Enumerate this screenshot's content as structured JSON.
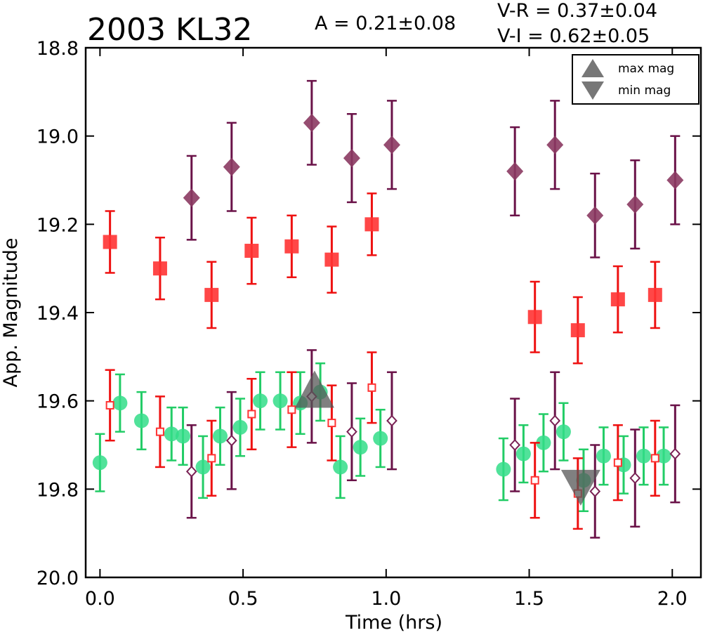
{
  "chart_data": {
    "type": "scatter",
    "title": "2003 KL32",
    "amplitude_label": "A  = 0.21±0.08",
    "color_labels": [
      "V-R = 0.37±0.04",
      "V-I  = 0.62±0.05"
    ],
    "xlabel": "Time (hrs)",
    "ylabel": "App. Magnitude",
    "xlim": [
      -0.05,
      2.1
    ],
    "ylim": [
      20.0,
      18.8
    ],
    "y_inverted": true,
    "xticks": [
      "0.0",
      "0.5",
      "1.0",
      "1.5",
      "2.0"
    ],
    "xtick_values": [
      0.0,
      0.5,
      1.0,
      1.5,
      2.0
    ],
    "yticks": [
      "18.8",
      "19.0",
      "19.2",
      "19.4",
      "19.6",
      "19.8",
      "20.0"
    ],
    "ytick_values": [
      18.8,
      19.0,
      19.2,
      19.4,
      19.6,
      19.8,
      20.0
    ],
    "grid": false,
    "legend": {
      "placement": "top-right",
      "entries": [
        {
          "label": "max mag",
          "marker": "triangle-up"
        },
        {
          "label": "min mag",
          "marker": "triangle-down"
        }
      ]
    },
    "series": [
      {
        "marker": "diamond",
        "color": "#8b3a62",
        "edge": "#6a1248",
        "errcolor": "#6a1248",
        "x": [
          0.32,
          0.46,
          0.74,
          0.88,
          1.02,
          1.45,
          1.59,
          1.73,
          1.87,
          2.01
        ],
        "y": [
          19.14,
          19.07,
          18.97,
          19.05,
          19.02,
          19.08,
          19.02,
          19.18,
          19.155,
          19.1
        ],
        "err": [
          0.095,
          0.1,
          0.095,
          0.1,
          0.1,
          0.1,
          0.1,
          0.095,
          0.1,
          0.1
        ]
      },
      {
        "marker": "square",
        "color": "#ff3333",
        "edge": "#ff3333",
        "errcolor": "#ee1111",
        "x": [
          0.035,
          0.21,
          0.39,
          0.53,
          0.67,
          0.81,
          0.95,
          1.52,
          1.67,
          1.81,
          1.94
        ],
        "y": [
          19.24,
          19.3,
          19.36,
          19.26,
          19.25,
          19.28,
          19.2,
          19.41,
          19.44,
          19.37,
          19.36
        ],
        "err": [
          0.07,
          0.07,
          0.075,
          0.075,
          0.07,
          0.075,
          0.07,
          0.08,
          0.075,
          0.075,
          0.075
        ]
      },
      {
        "marker": "circle",
        "color": "#33dd88",
        "edge": "#33dd88",
        "errcolor": "#22cc66",
        "x": [
          0.0,
          0.07,
          0.145,
          0.25,
          0.29,
          0.36,
          0.42,
          0.49,
          0.56,
          0.63,
          0.7,
          0.77,
          0.84,
          0.91,
          0.98,
          1.41,
          1.48,
          1.55,
          1.62,
          1.69,
          1.76,
          1.83,
          1.9,
          1.97
        ],
        "y": [
          19.74,
          19.605,
          19.645,
          19.675,
          19.68,
          19.75,
          19.68,
          19.66,
          19.6,
          19.6,
          19.605,
          19.58,
          19.75,
          19.705,
          19.685,
          19.755,
          19.72,
          19.695,
          19.67,
          19.78,
          19.725,
          19.745,
          19.725,
          19.725
        ],
        "err": [
          0.065,
          0.065,
          0.065,
          0.06,
          0.065,
          0.07,
          0.065,
          0.065,
          0.065,
          0.065,
          0.07,
          0.065,
          0.07,
          0.065,
          0.065,
          0.07,
          0.065,
          0.065,
          0.065,
          0.07,
          0.065,
          0.065,
          0.065,
          0.065
        ]
      },
      {
        "marker": "square-open",
        "color": "#ff3333",
        "edge": "#ff3333",
        "errcolor": "#ee1111",
        "x": [
          0.035,
          0.21,
          0.39,
          0.53,
          0.67,
          0.81,
          0.95,
          1.52,
          1.67,
          1.81,
          1.94
        ],
        "y": [
          19.61,
          19.67,
          19.73,
          19.63,
          19.62,
          19.65,
          19.57,
          19.78,
          19.81,
          19.74,
          19.73
        ],
        "err": [
          0.08,
          0.08,
          0.085,
          0.08,
          0.085,
          0.085,
          0.08,
          0.085,
          0.08,
          0.085,
          0.085
        ]
      },
      {
        "marker": "diamond-open",
        "color": "#8b3a62",
        "edge": "#7a2255",
        "errcolor": "#6a1248",
        "x": [
          0.32,
          0.46,
          0.74,
          0.88,
          1.02,
          1.45,
          1.59,
          1.73,
          1.87,
          2.01
        ],
        "y": [
          19.76,
          19.69,
          19.59,
          19.67,
          19.645,
          19.7,
          19.645,
          19.805,
          19.775,
          19.72
        ],
        "err": [
          0.105,
          0.11,
          0.105,
          0.11,
          0.11,
          0.105,
          0.11,
          0.105,
          0.11,
          0.11
        ]
      },
      {
        "marker": "triangle-up-big",
        "color": "#555555",
        "edge": "#555555",
        "errcolor": "#555555",
        "x": [
          0.75
        ],
        "y": [
          19.595
        ],
        "err": [
          0
        ]
      },
      {
        "marker": "triangle-down-big",
        "color": "#555555",
        "edge": "#555555",
        "errcolor": "#555555",
        "x": [
          1.68
        ],
        "y": [
          19.785
        ],
        "err": [
          0
        ]
      }
    ]
  }
}
